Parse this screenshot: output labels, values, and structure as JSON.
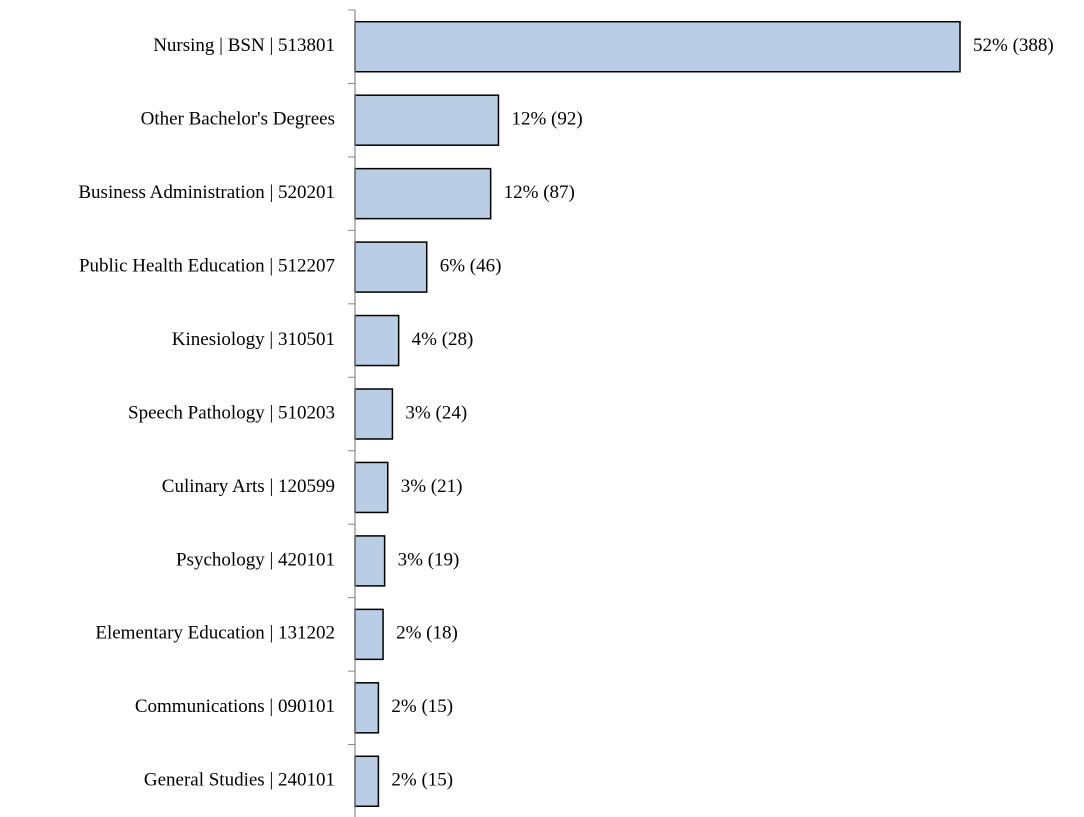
{
  "chart_data": {
    "type": "bar",
    "orientation": "horizontal",
    "categories": [
      "Nursing | BSN | 513801",
      "Other Bachelor's Degrees",
      "Business Administration | 520201",
      "Public Health Education | 512207",
      "Kinesiology | 310501",
      "Speech Pathology | 510203",
      "Culinary Arts | 120599",
      "Psychology | 420101",
      "Elementary Education | 131202",
      "Communications | 090101",
      "General Studies | 240101"
    ],
    "values": [
      388,
      92,
      87,
      46,
      28,
      24,
      21,
      19,
      18,
      15,
      15
    ],
    "value_labels": [
      "52% (388)",
      "12% (92)",
      "12% (87)",
      "6% (46)",
      "4% (28)",
      "3% (24)",
      "3% (21)",
      "3% (19)",
      "2% (18)",
      "2% (15)",
      "2% (15)"
    ],
    "color": "#b9cde5"
  }
}
